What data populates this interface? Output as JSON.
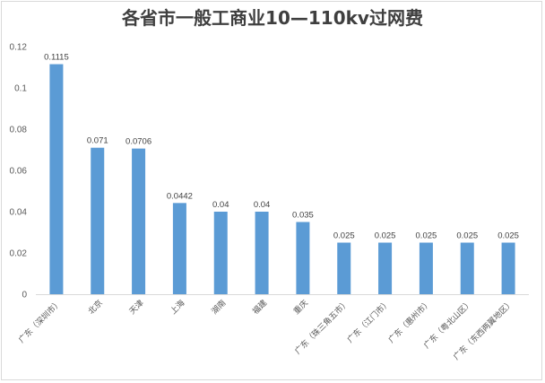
{
  "chart_data": {
    "type": "bar",
    "title": "各省市一般工商业10—110kv过网费",
    "categories": [
      "广东（深圳市）",
      "北京",
      "天津",
      "上海",
      "湖南",
      "福建",
      "重庆",
      "广东（珠三角五市）",
      "广东（江门市）",
      "广东（惠州市）",
      "广东（粤北山区）",
      "广东（东西两翼地区）"
    ],
    "values": [
      0.1115,
      0.071,
      0.0706,
      0.0442,
      0.04,
      0.04,
      0.035,
      0.025,
      0.025,
      0.025,
      0.025,
      0.025
    ],
    "data_labels": [
      "0.1115",
      "0.071",
      "0.0706",
      "0.0442",
      "0.04",
      "0.04",
      "0.035",
      "0.025",
      "0.025",
      "0.025",
      "0.025",
      "0.025"
    ],
    "yticks": [
      0,
      0.02,
      0.04,
      0.06,
      0.08,
      0.1,
      0.12
    ],
    "ytick_labels": [
      "0",
      "0.02",
      "0.04",
      "0.06",
      "0.08",
      "0.1",
      "0.12"
    ],
    "ylim": [
      0,
      0.12
    ],
    "xlabel": "",
    "ylabel": "",
    "grid": false,
    "legend": "none",
    "bar_color": "#5b9bd5",
    "axis_color": "#d9d9d9"
  }
}
